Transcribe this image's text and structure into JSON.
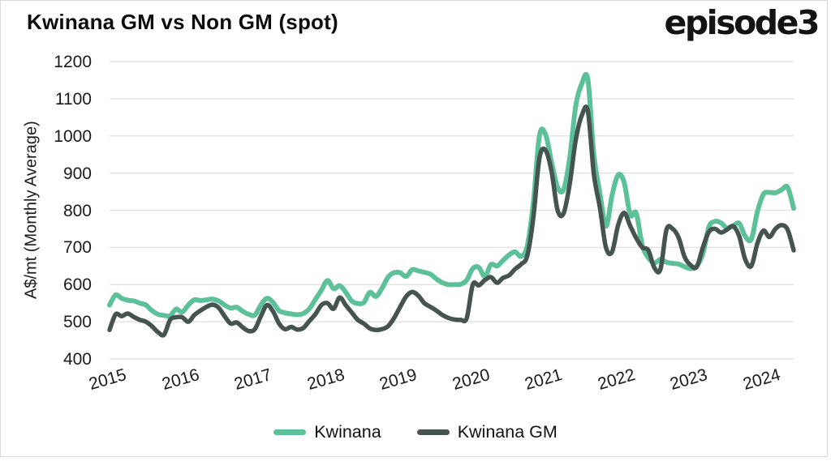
{
  "title": "Kwinana GM vs Non GM (spot)",
  "logo": "episode3",
  "colors": {
    "kwinana_green": "#5cc198",
    "kwinana_gm_dark": "#455450",
    "gridline": "#e3e3e3",
    "text": "#1b1b1b",
    "frame_border": "#d9d9d9"
  },
  "chart_data": {
    "type": "line",
    "title": "Kwinana GM vs Non GM (spot)",
    "ylabel": "A$/mt (Monthly Average)",
    "xlabel": "",
    "ylim": [
      400,
      1200
    ],
    "y_ticks": [
      400,
      500,
      600,
      700,
      800,
      900,
      1000,
      1100,
      1200
    ],
    "x_tick_labels": [
      "2015",
      "2016",
      "2017",
      "2018",
      "2019",
      "2020",
      "2021",
      "2022",
      "2023",
      "2024"
    ],
    "x_start": "2015-01",
    "frequency": "monthly",
    "grid": "horizontal",
    "legend_position": "bottom",
    "series": [
      {
        "name": "Kwinana",
        "color": "#5cc198",
        "values": [
          545,
          572,
          563,
          558,
          556,
          550,
          545,
          530,
          520,
          517,
          516,
          534,
          526,
          545,
          559,
          557,
          559,
          561,
          556,
          545,
          537,
          539,
          528,
          520,
          518,
          545,
          563,
          552,
          530,
          524,
          521,
          519,
          522,
          535,
          560,
          585,
          611,
          589,
          597,
          580,
          556,
          549,
          552,
          579,
          568,
          590,
          620,
          632,
          632,
          622,
          640,
          637,
          633,
          628,
          615,
          605,
          600,
          600,
          601,
          612,
          643,
          646,
          622,
          654,
          650,
          665,
          680,
          688,
          676,
          705,
          820,
          1000,
          1005,
          930,
          862,
          856,
          940,
          1080,
          1140,
          1152,
          950,
          845,
          757,
          840,
          895,
          875,
          788,
          792,
          705,
          672,
          658,
          668,
          660,
          657,
          655,
          648,
          643,
          650,
          683,
          755,
          770,
          766,
          752,
          758,
          765,
          730,
          722,
          795,
          843,
          848,
          847,
          855,
          862,
          805
        ]
      },
      {
        "name": "Kwinana GM",
        "color": "#455450",
        "values": [
          478,
          520,
          515,
          522,
          513,
          505,
          500,
          488,
          472,
          465,
          505,
          512,
          512,
          500,
          518,
          530,
          540,
          546,
          538,
          515,
          495,
          498,
          485,
          475,
          480,
          515,
          545,
          528,
          495,
          480,
          486,
          479,
          483,
          502,
          520,
          545,
          550,
          535,
          565,
          545,
          525,
          505,
          495,
          482,
          478,
          480,
          488,
          510,
          540,
          568,
          580,
          570,
          550,
          540,
          530,
          518,
          510,
          506,
          505,
          510,
          600,
          598,
          612,
          620,
          605,
          618,
          625,
          642,
          655,
          678,
          780,
          940,
          962,
          905,
          800,
          792,
          870,
          988,
          1055,
          1067,
          897,
          806,
          700,
          688,
          760,
          793,
          758,
          725,
          700,
          692,
          645,
          642,
          748,
          750,
          726,
          674,
          652,
          648,
          700,
          742,
          750,
          740,
          748,
          757,
          730,
          668,
          650,
          710,
          745,
          728,
          750,
          760,
          748,
          692
        ]
      }
    ]
  }
}
